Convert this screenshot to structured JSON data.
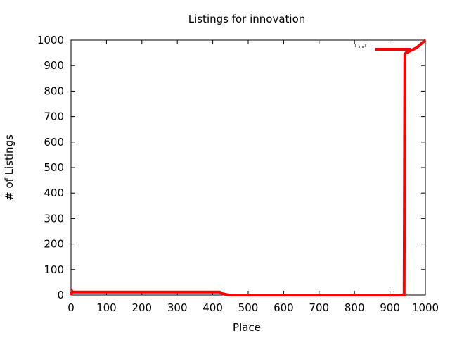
{
  "chart_data": {
    "type": "line",
    "title": "Listings for innovation",
    "xlabel": "Place",
    "ylabel": "# of Listings",
    "xlim": [
      0,
      1000
    ],
    "ylim": [
      0,
      1000
    ],
    "xticks": [
      0,
      100,
      200,
      300,
      400,
      500,
      600,
      700,
      800,
      900,
      1000
    ],
    "yticks": [
      0,
      100,
      200,
      300,
      400,
      500,
      600,
      700,
      800,
      900,
      1000
    ],
    "grid": false,
    "legend_position": "top-right",
    "series": [
      {
        "color": "#ff0000",
        "x": [
          0,
          3,
          5,
          420,
          428,
          445,
          940,
          942,
          945,
          975,
          1000
        ],
        "y": [
          0,
          15,
          12,
          12,
          5,
          0,
          0,
          945,
          950,
          970,
          1000
        ]
      }
    ]
  }
}
